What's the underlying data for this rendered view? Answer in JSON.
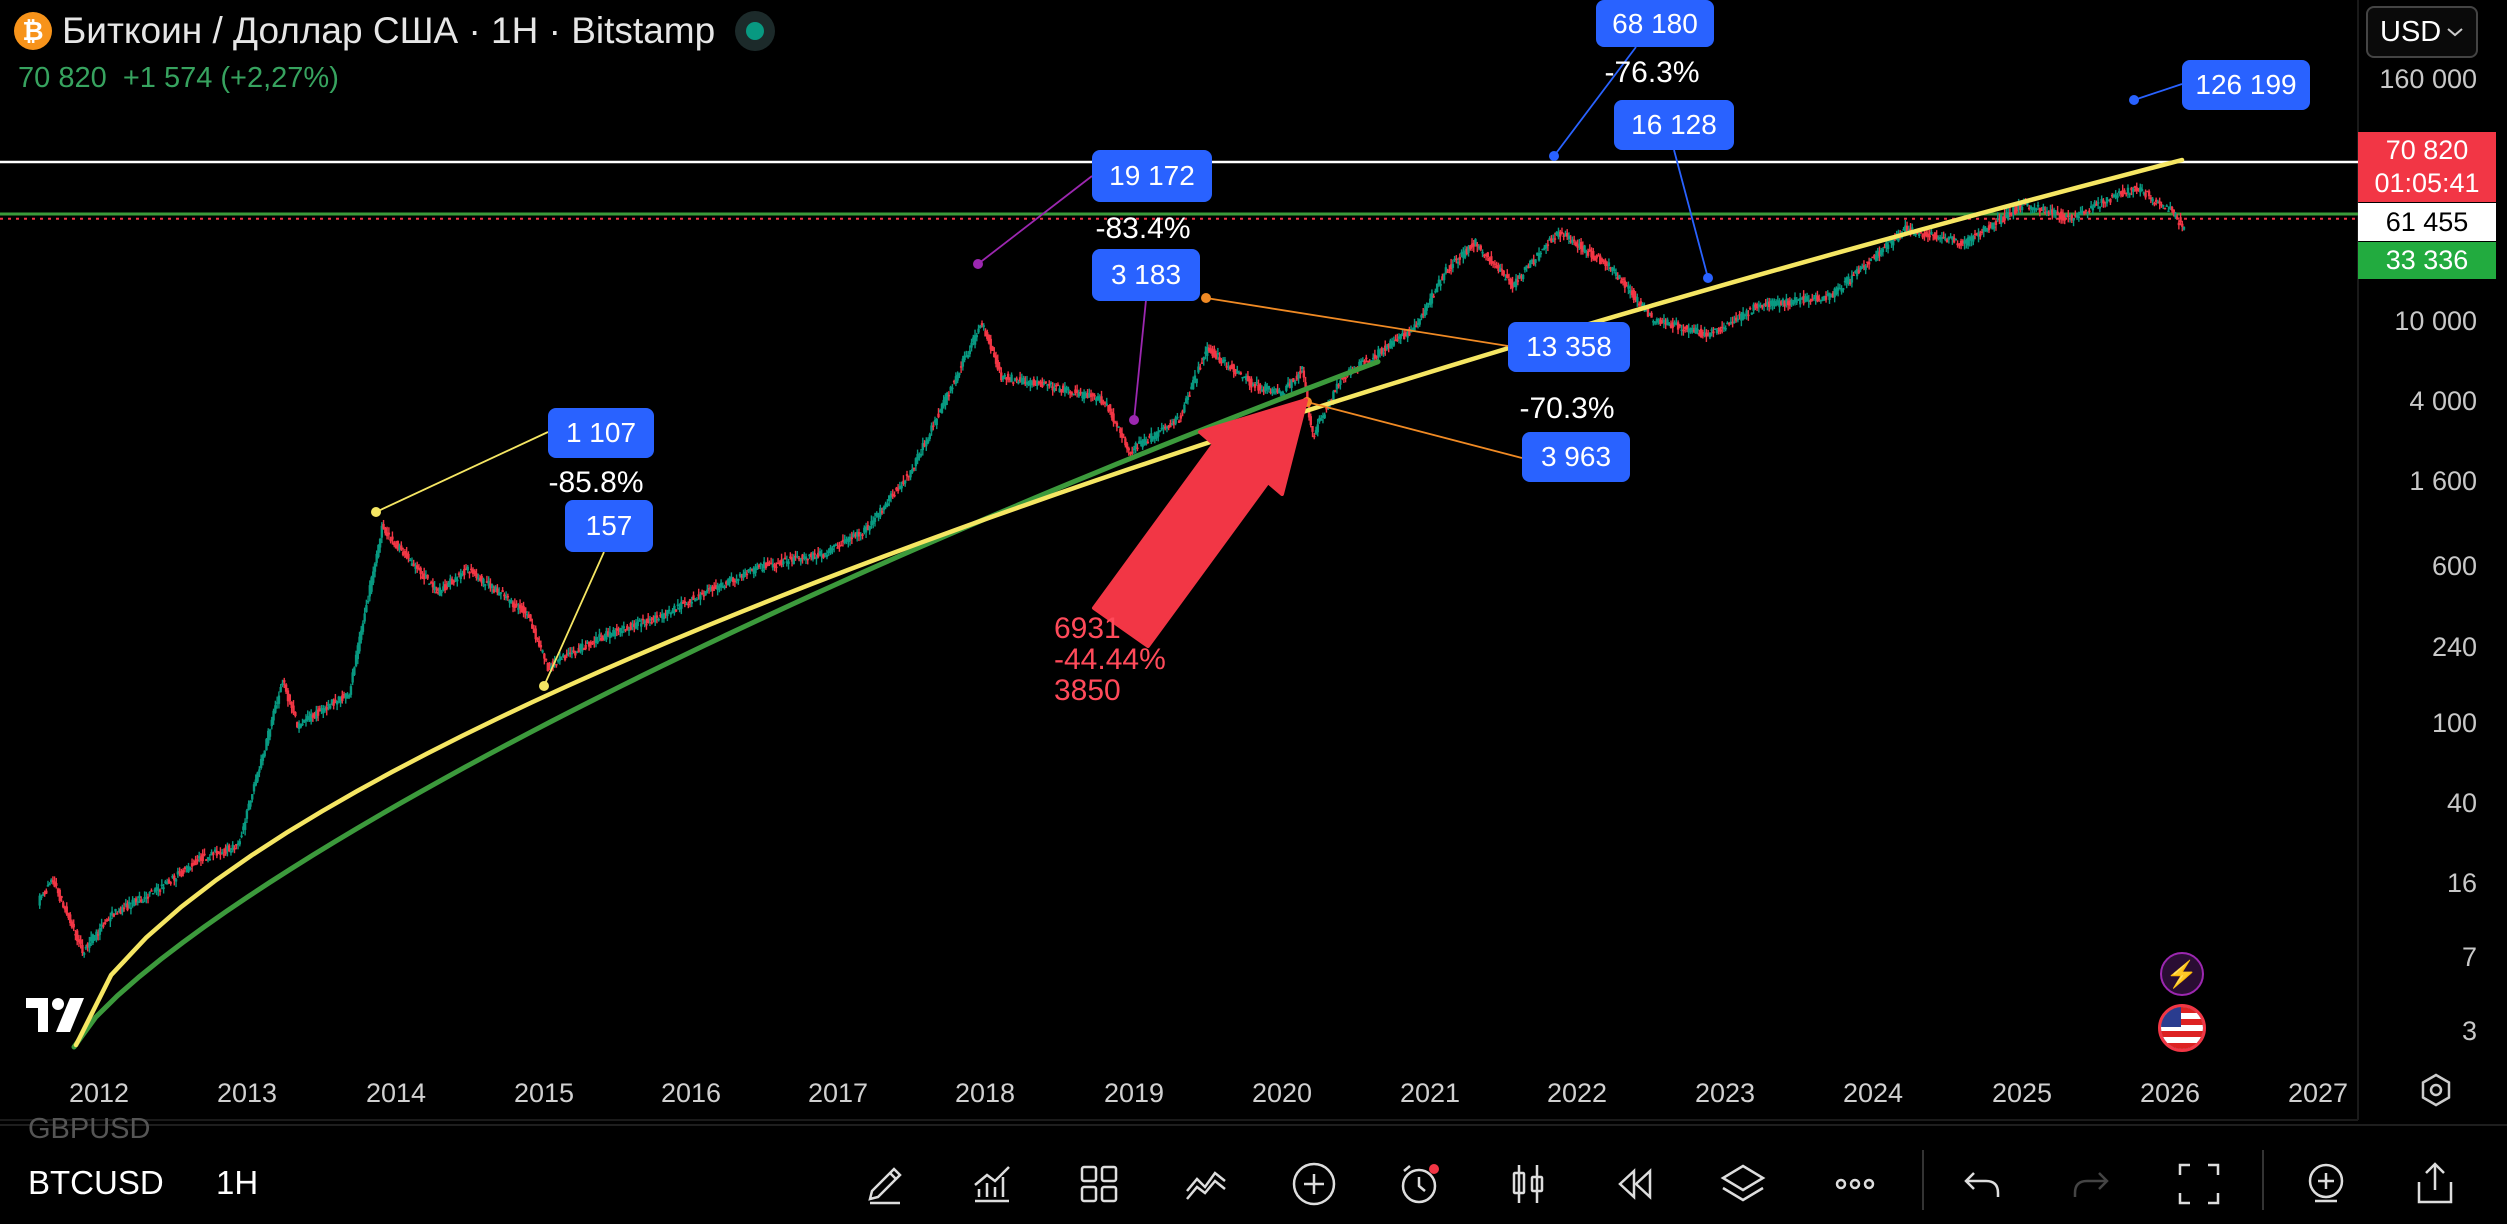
{
  "header": {
    "coin_glyph": "₿",
    "title": "Биткоин / Доллар США · 1H · Bitstamp",
    "last": "70 820",
    "change": "+1 574 (+2,27%)"
  },
  "currency": {
    "label": "USD",
    "chevron": "chevron-down-icon"
  },
  "price_scale": [
    "160 000",
    "10 000",
    "4 000",
    "1 600",
    "600",
    "240",
    "100",
    "40",
    "16",
    "7",
    "3"
  ],
  "time_axis": [
    "2012",
    "2013",
    "2014",
    "2015",
    "2016",
    "2017",
    "2018",
    "2019",
    "2020",
    "2021",
    "2022",
    "2023",
    "2024",
    "2025",
    "2026",
    "2027"
  ],
  "price_tags": {
    "current": {
      "price": "70 820",
      "countdown": "01:05:41",
      "color": "#f23645"
    },
    "line_white": {
      "price": "61 455",
      "color": "#ffffff"
    },
    "line_green": {
      "price": "33 336",
      "color": "#22ab3f"
    }
  },
  "annotations": {
    "cycle1": {
      "high": "1 107",
      "drop": "-85.8%",
      "low": "157"
    },
    "cycle2": {
      "high": "19 172",
      "drop": "-83.4%",
      "low": "3 183"
    },
    "cycle3": {
      "high": "68 180",
      "drop": "-76.3%",
      "low": "16 128"
    },
    "covid": {
      "high": "13 358",
      "drop": "-70.3%",
      "low": "3 963"
    },
    "ath": {
      "price": "126 199"
    },
    "arrow_note": {
      "line1": "6931",
      "line2": "-44.44%",
      "line3": "3850"
    }
  },
  "colors": {
    "up": "#089981",
    "down": "#f23645",
    "label": "#2962ff",
    "power_law": "#f5e663",
    "trend_green": "#3c9a3c"
  },
  "bottom_bar": {
    "prev_symbol": "GBPUSD",
    "symbol": "BTCUSD",
    "timeframe": "1H"
  },
  "toolbar_icons": [
    "pencil-icon",
    "indicators-icon",
    "layouts-icon",
    "compare-icon",
    "add-icon",
    "alert-clock-icon",
    "candles-icon",
    "replay-icon",
    "layers-icon",
    "more-icon",
    "undo-icon",
    "redo-icon",
    "fullscreen-icon",
    "add-chart-icon",
    "share-icon"
  ]
}
